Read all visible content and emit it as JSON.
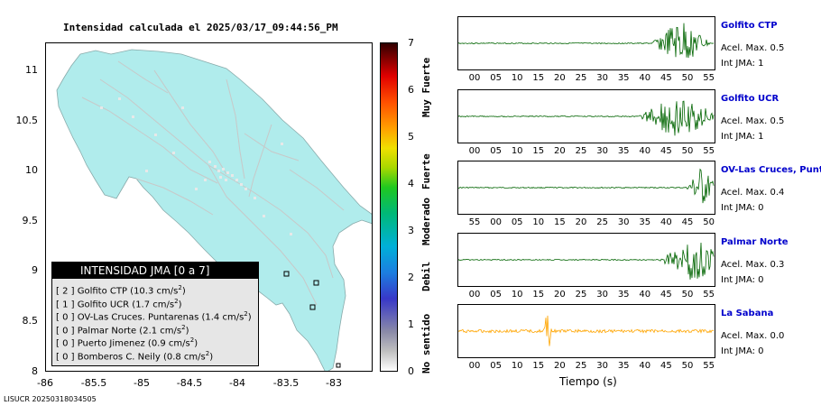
{
  "title": "Intensidad calculada el 2025/03/17_09:44:56_PM",
  "map": {
    "y_ticks": [
      "11",
      "10.5",
      "10",
      "9.5",
      "9",
      "8.5",
      "8"
    ],
    "x_ticks": [
      "-86",
      "-85.5",
      "-85",
      "-84.5",
      "-84",
      "-83.5",
      "-83"
    ],
    "land_color": "#b0ecec"
  },
  "legend": {
    "title": "INTENSIDAD JMA [0 a 7]",
    "rows": [
      {
        "level": "[ 2 ]",
        "station": "Golfito CTP (10.3 cm/s",
        "sup": "2",
        "close": ")"
      },
      {
        "level": "[ 1 ]",
        "station": "Golfito UCR (1.7 cm/s",
        "sup": "2",
        "close": ")"
      },
      {
        "level": "[ 0 ]",
        "station": "OV-Las Cruces. Puntarenas (1.4 cm/s",
        "sup": "2",
        "close": ")"
      },
      {
        "level": "[ 0 ]",
        "station": "Palmar Norte (2.1 cm/s",
        "sup": "2",
        "close": ")"
      },
      {
        "level": "[ 0 ]",
        "station": "Puerto Jimenez (0.9 cm/s",
        "sup": "2",
        "close": ")"
      },
      {
        "level": "[ 0 ]",
        "station": "Bomberos C. Neily (0.8 cm/s",
        "sup": "2",
        "close": ")"
      }
    ]
  },
  "colorbar": {
    "ticks": [
      "7",
      "6",
      "5",
      "4",
      "3",
      "2",
      "1",
      "0"
    ],
    "labels": [
      "Muy Fuerte",
      "Fuerte",
      "Moderado",
      "Debil",
      "No sentido"
    ]
  },
  "stations": [
    {
      "name": "Golfito CTP",
      "acc": "Acel. Max. 0.5",
      "int": "Int JMA: 1",
      "color": "#006400",
      "ticks": [
        "00",
        "05",
        "10",
        "15",
        "20",
        "25",
        "30",
        "35",
        "40",
        "45",
        "50",
        "55"
      ],
      "burst_at": 0.87,
      "burst_width": 0.12,
      "amp": 0.9
    },
    {
      "name": "Golfito UCR",
      "acc": "Acel. Max. 0.5",
      "int": "Int JMA: 1",
      "color": "#006400",
      "ticks": [
        "00",
        "05",
        "10",
        "15",
        "20",
        "25",
        "30",
        "35",
        "40",
        "45",
        "50",
        "55"
      ],
      "burst_at": 0.86,
      "burst_width": 0.16,
      "amp": 0.9
    },
    {
      "name": "OV-Las Cruces, Puntar",
      "acc": "Acel. Max. 0.4",
      "int": "Int JMA: 0",
      "color": "#006400",
      "ticks": [
        "55",
        "00",
        "05",
        "10",
        "15",
        "20",
        "25",
        "30",
        "35",
        "40",
        "45",
        "50"
      ],
      "burst_at": 0.95,
      "burst_width": 0.06,
      "amp": 0.85
    },
    {
      "name": "Palmar Norte",
      "acc": "Acel. Max. 0.3",
      "int": "Int JMA: 0",
      "color": "#006400",
      "ticks": [
        "00",
        "05",
        "10",
        "15",
        "20",
        "25",
        "30",
        "35",
        "40",
        "45",
        "50",
        "55"
      ],
      "burst_at": 0.92,
      "burst_width": 0.14,
      "amp": 0.85
    },
    {
      "name": "La Sabana",
      "acc": "Acel. Max. 0.0",
      "int": "Int JMA: 0",
      "color": "#ffa500",
      "ticks": [
        "00",
        "05",
        "10",
        "15",
        "20",
        "25",
        "30",
        "35",
        "40",
        "45",
        "50",
        "55"
      ],
      "burst_at": 0.35,
      "burst_width": 0.02,
      "amp": 0.9
    }
  ],
  "time_axis_label": "Tiempo (s)",
  "footer_id": "LISUCR 20250318034505"
}
